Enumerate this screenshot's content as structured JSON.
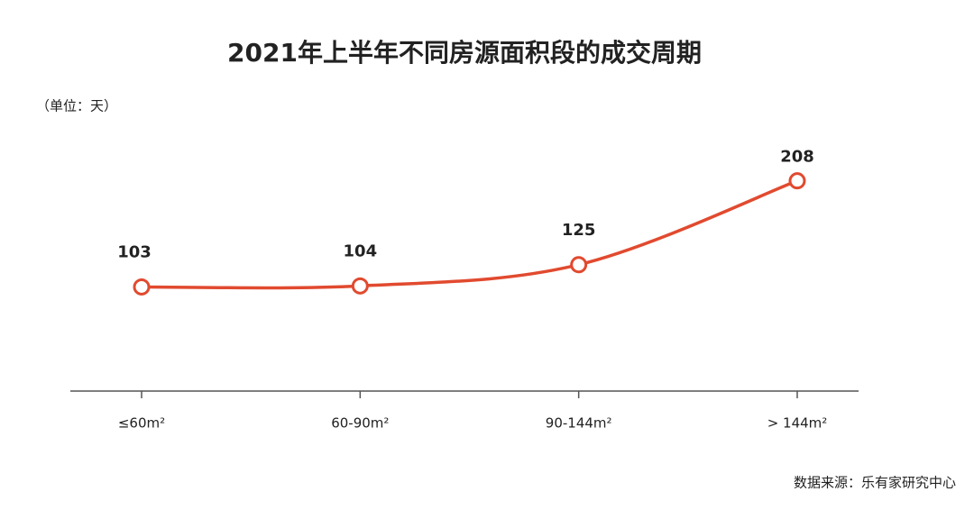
{
  "chart_data": {
    "type": "line",
    "title": "2021年上半年不同房源面积段的成交周期",
    "unit_label": "（单位：天）",
    "source": "数据来源：乐有家研究中心",
    "categories": [
      "≤60m²",
      "60-90m²",
      "90-144m²",
      "> 144m²"
    ],
    "series": [
      {
        "color": "#e14a2f",
        "values": [
          103,
          104,
          125,
          208
        ]
      }
    ],
    "ylim": [
      0,
      230
    ]
  }
}
